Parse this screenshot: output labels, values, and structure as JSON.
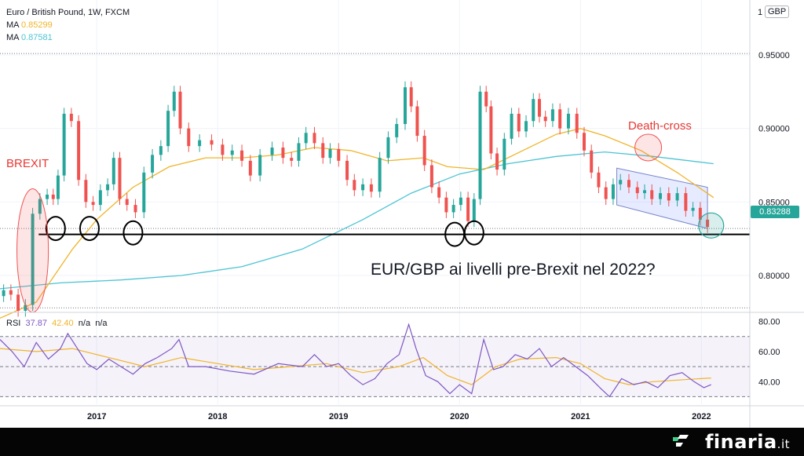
{
  "header": {
    "symbol_line": "Euro / British Pound, 1W, FXCM",
    "ma1_label": "MA",
    "ma1_value": "0.85299",
    "ma1_color": "#f0b429",
    "ma2_label": "MA",
    "ma2_value": "0.87581",
    "ma2_color": "#4dc3d3",
    "currency_badge": "GBP"
  },
  "last_price": {
    "label": "0.83288",
    "value": 0.83288,
    "color": "#26a69a"
  },
  "annotations": {
    "brexit": "BREXIT",
    "death_cross": "Death-cross",
    "headline": "EUR/GBP ai livelli pre-Brexit nel 2022?"
  },
  "rsi": {
    "label": "RSI",
    "value1": "37.87",
    "value2": "42.40",
    "na1": "n/a",
    "na2": "n/a",
    "value1_color": "#7e57c2",
    "value2_color": "#f0b429"
  },
  "brand": {
    "name": "finaria",
    "tld": ".it",
    "icon": "finaria-logo-icon"
  },
  "chart_data": [
    {
      "type": "line",
      "name": "price",
      "x_ticks": [
        "2017",
        "2018",
        "2019",
        "2020",
        "2021",
        "2022"
      ],
      "x_tick_years": [
        2017,
        2018,
        2019,
        2020,
        2021,
        2022
      ],
      "x_range": [
        2016.2,
        2022.4
      ],
      "y_ticks": [
        "0.95000",
        "0.90000",
        "0.85000",
        "0.80000"
      ],
      "y_tick_values": [
        0.95,
        0.9,
        0.85,
        0.8
      ],
      "y_top_label": "1",
      "ylim": [
        0.776,
        0.982
      ],
      "support_level": 0.828,
      "dotted_levels": [
        0.832,
        0.951,
        0.778
      ],
      "series": [
        {
          "key": "close",
          "color": "#26a69a",
          "down_color": "#ef5350",
          "points": [
            [
              2016.2,
              0.786
            ],
            [
              2016.26,
              0.79
            ],
            [
              2016.32,
              0.787
            ],
            [
              2016.38,
              0.776
            ],
            [
              2016.44,
              0.78
            ],
            [
              2016.5,
              0.842
            ],
            [
              2016.56,
              0.852
            ],
            [
              2016.62,
              0.855
            ],
            [
              2016.66,
              0.852
            ],
            [
              2016.7,
              0.868
            ],
            [
              2016.76,
              0.91
            ],
            [
              2016.82,
              0.905
            ],
            [
              2016.88,
              0.865
            ],
            [
              2016.94,
              0.85
            ],
            [
              2017.0,
              0.848
            ],
            [
              2017.06,
              0.858
            ],
            [
              2017.12,
              0.862
            ],
            [
              2017.16,
              0.88
            ],
            [
              2017.22,
              0.852
            ],
            [
              2017.28,
              0.848
            ],
            [
              2017.36,
              0.843
            ],
            [
              2017.42,
              0.87
            ],
            [
              2017.5,
              0.882
            ],
            [
              2017.56,
              0.888
            ],
            [
              2017.62,
              0.912
            ],
            [
              2017.66,
              0.925
            ],
            [
              2017.72,
              0.9
            ],
            [
              2017.8,
              0.888
            ],
            [
              2017.9,
              0.892
            ],
            [
              2018.0,
              0.889
            ],
            [
              2018.08,
              0.882
            ],
            [
              2018.16,
              0.885
            ],
            [
              2018.24,
              0.878
            ],
            [
              2018.3,
              0.868
            ],
            [
              2018.4,
              0.882
            ],
            [
              2018.5,
              0.887
            ],
            [
              2018.58,
              0.88
            ],
            [
              2018.64,
              0.878
            ],
            [
              2018.7,
              0.89
            ],
            [
              2018.76,
              0.897
            ],
            [
              2018.84,
              0.89
            ],
            [
              2018.9,
              0.88
            ],
            [
              2018.96,
              0.886
            ],
            [
              2019.04,
              0.878
            ],
            [
              2019.1,
              0.865
            ],
            [
              2019.16,
              0.858
            ],
            [
              2019.24,
              0.862
            ],
            [
              2019.3,
              0.857
            ],
            [
              2019.38,
              0.88
            ],
            [
              2019.44,
              0.894
            ],
            [
              2019.52,
              0.903
            ],
            [
              2019.58,
              0.928
            ],
            [
              2019.62,
              0.915
            ],
            [
              2019.68,
              0.895
            ],
            [
              2019.74,
              0.875
            ],
            [
              2019.8,
              0.86
            ],
            [
              2019.86,
              0.853
            ],
            [
              2019.92,
              0.843
            ],
            [
              2019.98,
              0.848
            ],
            [
              2020.04,
              0.853
            ],
            [
              2020.1,
              0.837
            ],
            [
              2020.14,
              0.852
            ],
            [
              2020.2,
              0.925
            ],
            [
              2020.24,
              0.915
            ],
            [
              2020.28,
              0.883
            ],
            [
              2020.34,
              0.872
            ],
            [
              2020.4,
              0.893
            ],
            [
              2020.46,
              0.91
            ],
            [
              2020.52,
              0.898
            ],
            [
              2020.58,
              0.905
            ],
            [
              2020.64,
              0.92
            ],
            [
              2020.68,
              0.908
            ],
            [
              2020.74,
              0.905
            ],
            [
              2020.8,
              0.913
            ],
            [
              2020.86,
              0.9
            ],
            [
              2020.94,
              0.91
            ],
            [
              2021.0,
              0.897
            ],
            [
              2021.06,
              0.885
            ],
            [
              2021.12,
              0.87
            ],
            [
              2021.18,
              0.86
            ],
            [
              2021.24,
              0.852
            ],
            [
              2021.3,
              0.862
            ],
            [
              2021.36,
              0.865
            ],
            [
              2021.44,
              0.86
            ],
            [
              2021.5,
              0.856
            ],
            [
              2021.56,
              0.858
            ],
            [
              2021.62,
              0.852
            ],
            [
              2021.7,
              0.856
            ],
            [
              2021.76,
              0.851
            ],
            [
              2021.84,
              0.856
            ],
            [
              2021.9,
              0.844
            ],
            [
              2021.96,
              0.846
            ],
            [
              2022.02,
              0.838
            ],
            [
              2022.08,
              0.833
            ]
          ]
        },
        {
          "key": "ma_fast",
          "color": "#f0b429",
          "points": [
            [
              2016.2,
              0.771
            ],
            [
              2016.5,
              0.782
            ],
            [
              2016.8,
              0.818
            ],
            [
              2017.0,
              0.838
            ],
            [
              2017.3,
              0.86
            ],
            [
              2017.6,
              0.874
            ],
            [
              2017.9,
              0.88
            ],
            [
              2018.2,
              0.88
            ],
            [
              2018.5,
              0.882
            ],
            [
              2018.8,
              0.887
            ],
            [
              2019.1,
              0.885
            ],
            [
              2019.4,
              0.878
            ],
            [
              2019.7,
              0.88
            ],
            [
              2019.9,
              0.874
            ],
            [
              2020.2,
              0.872
            ],
            [
              2020.5,
              0.884
            ],
            [
              2020.8,
              0.896
            ],
            [
              2021.0,
              0.9
            ],
            [
              2021.2,
              0.895
            ],
            [
              2021.5,
              0.885
            ],
            [
              2021.8,
              0.87
            ],
            [
              2022.1,
              0.853
            ]
          ]
        },
        {
          "key": "ma_slow",
          "color": "#4dc3d3",
          "points": [
            [
              2016.2,
              0.791
            ],
            [
              2016.7,
              0.795
            ],
            [
              2017.2,
              0.797
            ],
            [
              2017.7,
              0.8
            ],
            [
              2018.2,
              0.806
            ],
            [
              2018.7,
              0.818
            ],
            [
              2019.2,
              0.838
            ],
            [
              2019.6,
              0.856
            ],
            [
              2020.0,
              0.869
            ],
            [
              2020.4,
              0.876
            ],
            [
              2020.8,
              0.881
            ],
            [
              2021.2,
              0.884
            ],
            [
              2021.6,
              0.881
            ],
            [
              2022.1,
              0.876
            ]
          ]
        }
      ],
      "circles": [
        {
          "x": 2016.66,
          "y": 0.832
        },
        {
          "x": 2016.94,
          "y": 0.832
        },
        {
          "x": 2017.3,
          "y": 0.829
        },
        {
          "x": 2019.96,
          "y": 0.828
        },
        {
          "x": 2020.12,
          "y": 0.829
        },
        {
          "x": 2022.08,
          "y": 0.834
        }
      ],
      "brexit_ellipse": {
        "x": 2016.47,
        "y": 0.817,
        "rx_years": 0.13,
        "ry_price": 0.042
      },
      "death_cross_circle": {
        "x": 2021.56,
        "y": 0.887
      },
      "channel": [
        [
          2021.3,
          0.873
        ],
        [
          2022.05,
          0.86
        ],
        [
          2022.05,
          0.832
        ],
        [
          2021.3,
          0.848
        ]
      ]
    },
    {
      "type": "line",
      "name": "rsi",
      "y_ticks": [
        "80.00",
        "60.00",
        "40.00"
      ],
      "y_tick_values": [
        80,
        60,
        40
      ],
      "ylim": [
        25,
        85
      ],
      "band": [
        30,
        70
      ],
      "series": [
        {
          "key": "rsi",
          "color": "#7e57c2",
          "points": [
            [
              2016.2,
              68
            ],
            [
              2016.3,
              60
            ],
            [
              2016.4,
              50
            ],
            [
              2016.5,
              66
            ],
            [
              2016.6,
              55
            ],
            [
              2016.7,
              62
            ],
            [
              2016.76,
              72
            ],
            [
              2016.84,
              62
            ],
            [
              2016.92,
              52
            ],
            [
              2017.0,
              48
            ],
            [
              2017.1,
              55
            ],
            [
              2017.2,
              50
            ],
            [
              2017.3,
              45
            ],
            [
              2017.4,
              52
            ],
            [
              2017.5,
              56
            ],
            [
              2017.62,
              62
            ],
            [
              2017.68,
              68
            ],
            [
              2017.76,
              50
            ],
            [
              2017.9,
              50
            ],
            [
              2018.1,
              47
            ],
            [
              2018.3,
              45
            ],
            [
              2018.5,
              52
            ],
            [
              2018.7,
              50
            ],
            [
              2018.8,
              58
            ],
            [
              2018.9,
              50
            ],
            [
              2019.0,
              52
            ],
            [
              2019.1,
              44
            ],
            [
              2019.2,
              38
            ],
            [
              2019.3,
              42
            ],
            [
              2019.4,
              52
            ],
            [
              2019.5,
              58
            ],
            [
              2019.58,
              78
            ],
            [
              2019.64,
              62
            ],
            [
              2019.72,
              44
            ],
            [
              2019.82,
              40
            ],
            [
              2019.92,
              32
            ],
            [
              2020.0,
              38
            ],
            [
              2020.1,
              32
            ],
            [
              2020.2,
              68
            ],
            [
              2020.28,
              48
            ],
            [
              2020.36,
              50
            ],
            [
              2020.46,
              58
            ],
            [
              2020.56,
              55
            ],
            [
              2020.66,
              62
            ],
            [
              2020.76,
              50
            ],
            [
              2020.86,
              56
            ],
            [
              2020.96,
              50
            ],
            [
              2021.06,
              44
            ],
            [
              2021.16,
              36
            ],
            [
              2021.24,
              30
            ],
            [
              2021.34,
              42
            ],
            [
              2021.44,
              38
            ],
            [
              2021.54,
              40
            ],
            [
              2021.64,
              36
            ],
            [
              2021.74,
              44
            ],
            [
              2021.84,
              46
            ],
            [
              2021.94,
              40
            ],
            [
              2022.02,
              36
            ],
            [
              2022.08,
              38
            ]
          ]
        },
        {
          "key": "rsi_ma",
          "color": "#f0b429",
          "points": [
            [
              2016.2,
              62
            ],
            [
              2016.5,
              60
            ],
            [
              2016.8,
              62
            ],
            [
              2017.1,
              56
            ],
            [
              2017.4,
              50
            ],
            [
              2017.7,
              56
            ],
            [
              2018.0,
              52
            ],
            [
              2018.3,
              48
            ],
            [
              2018.6,
              50
            ],
            [
              2018.9,
              52
            ],
            [
              2019.2,
              46
            ],
            [
              2019.5,
              50
            ],
            [
              2019.7,
              56
            ],
            [
              2019.9,
              44
            ],
            [
              2020.1,
              38
            ],
            [
              2020.3,
              50
            ],
            [
              2020.5,
              55
            ],
            [
              2020.8,
              56
            ],
            [
              2021.0,
              52
            ],
            [
              2021.2,
              42
            ],
            [
              2021.4,
              38
            ],
            [
              2021.6,
              40
            ],
            [
              2021.8,
              41
            ],
            [
              2022.08,
              42.4
            ]
          ]
        }
      ]
    }
  ]
}
